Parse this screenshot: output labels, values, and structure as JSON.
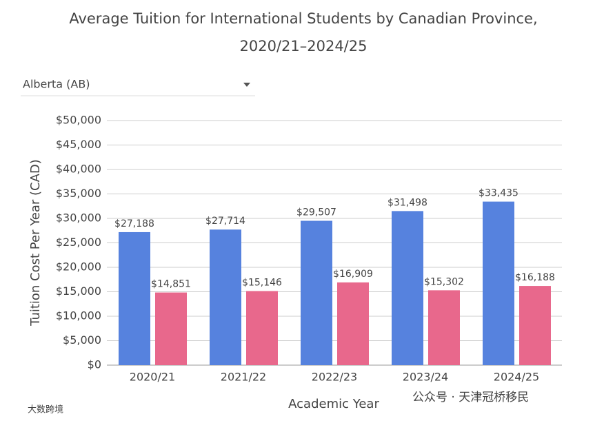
{
  "chart_data": {
    "type": "bar",
    "title": [
      "Average Tuition for International Students by Canadian Province,",
      "2020/21–2024/25"
    ],
    "dropdown": "Alberta (AB)",
    "x_label": "Academic Year",
    "y_label": "Tuition Cost Per Year (CAD)",
    "categories": [
      "2020/21",
      "2021/22",
      "2022/23",
      "2023/24",
      "2024/25"
    ],
    "series": [
      {
        "color": "#5682de",
        "values": [
          27188,
          27714,
          29507,
          31498,
          33435
        ],
        "value_labels": [
          "$27,188",
          "$27,714",
          "$29,507",
          "$31,498",
          "$33,435"
        ]
      },
      {
        "color": "#e8688c",
        "values": [
          14851,
          15146,
          16909,
          15302,
          16188
        ],
        "value_labels": [
          "$14,851",
          "$15,146",
          "$16,909",
          "$15,302",
          "$16,188"
        ]
      }
    ],
    "ylim": [
      0,
      50000
    ],
    "yticks": [
      {
        "value": 0,
        "label": "$0"
      },
      {
        "value": 5000,
        "label": "$5,000"
      },
      {
        "value": 10000,
        "label": "$10,000"
      },
      {
        "value": 15000,
        "label": "$15,000"
      },
      {
        "value": 20000,
        "label": "$20,000"
      },
      {
        "value": 25000,
        "label": "$25,000"
      },
      {
        "value": 30000,
        "label": "$30,000"
      },
      {
        "value": 35000,
        "label": "$35,000"
      },
      {
        "value": 40000,
        "label": "$40,000"
      },
      {
        "value": 45000,
        "label": "$45,000"
      },
      {
        "value": 50000,
        "label": "$50,000"
      }
    ],
    "grid": true,
    "watermarks": [
      "公众号 · 天津冠桥移民",
      "大数跨境"
    ]
  }
}
